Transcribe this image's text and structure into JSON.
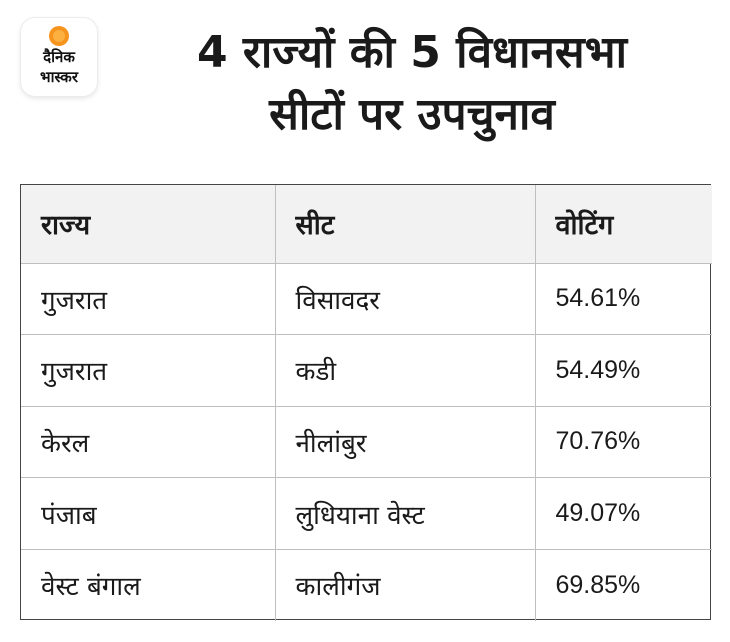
{
  "brand": {
    "logo_line1": "दैनिक",
    "logo_line2": "भास्कर"
  },
  "title": {
    "line1": "4 राज्यों की 5 विधानसभा",
    "line2": "सीटों पर उपचुनाव"
  },
  "table": {
    "headers": [
      "राज्य",
      "सीट",
      "वोटिंग"
    ],
    "rows": [
      [
        "गुजरात",
        "विसावदर",
        "54.61%"
      ],
      [
        "गुजरात",
        "कडी",
        "54.49%"
      ],
      [
        "केरल",
        "नीलांबुर",
        "70.76%"
      ],
      [
        "पंजाब",
        "लुधियाना वेस्ट",
        "49.07%"
      ],
      [
        "वेस्ट बंगाल",
        "कालीगंज",
        "69.85%"
      ]
    ]
  },
  "colors": {
    "header_bg": "#f2f2f2",
    "border": "#444444",
    "logo_accent": "#f7941d"
  }
}
